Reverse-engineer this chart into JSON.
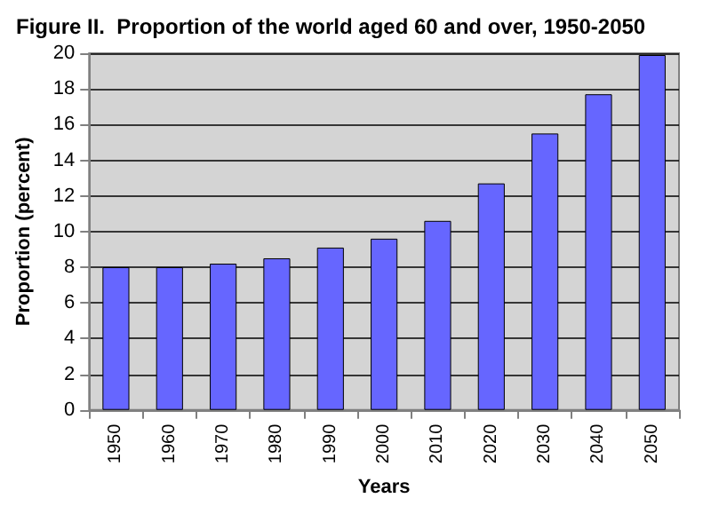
{
  "chart_data": {
    "type": "bar",
    "title": "Figure II.  Proportion of the world aged 60 and over, 1950-2050",
    "xlabel": "Years",
    "ylabel": "Proportion (percent)",
    "categories": [
      "1950",
      "1960",
      "1970",
      "1980",
      "1990",
      "2000",
      "2010",
      "2020",
      "2030",
      "2040",
      "2050"
    ],
    "values": [
      8.0,
      8.0,
      8.2,
      8.5,
      9.1,
      9.6,
      10.6,
      12.7,
      15.5,
      17.7,
      19.9
    ],
    "color": "#6666ff",
    "ylim": [
      0,
      20
    ],
    "yticks": [
      0,
      2,
      4,
      6,
      8,
      10,
      12,
      14,
      16,
      18,
      20
    ],
    "grid": "y"
  }
}
